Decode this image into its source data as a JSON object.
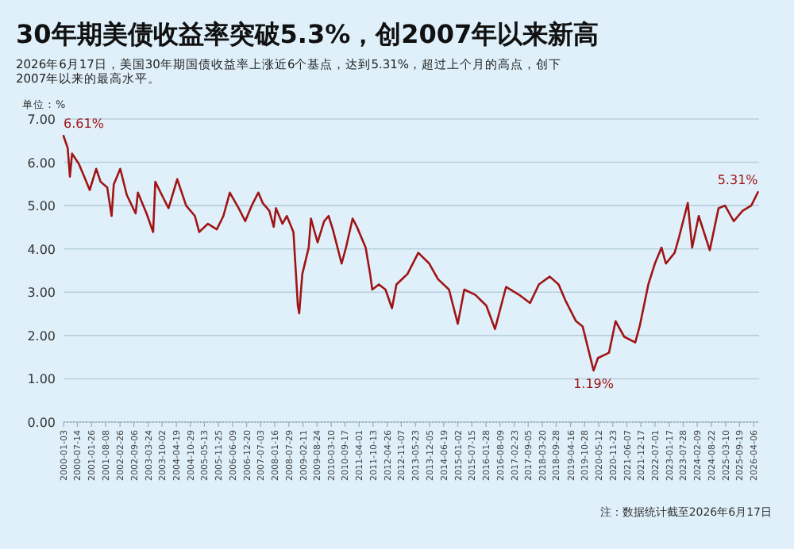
{
  "chart_data": {
    "type": "line",
    "title": "30年期美债收益率突破5.3%，创2007年以来新高",
    "subtitle": "2026年6月17日，美国30年期国债收益率上涨近6个基点，达到5.31%，超过上个月的高点，创下2007年以来的最高水平。",
    "ylabel": "单位：%",
    "xlim": [
      "2000-01-03",
      "2026-06-17"
    ],
    "xticks": [
      "2000-01-03",
      "2000-07-14",
      "2001-01-26",
      "2001-08-08",
      "2002-02-26",
      "2002-09-06",
      "2003-03-24",
      "2003-10-02",
      "2004-04-19",
      "2004-10-29",
      "2005-05-13",
      "2005-11-25",
      "2006-06-09",
      "2006-12-20",
      "2007-07-03",
      "2008-01-16",
      "2008-07-29",
      "2009-02-11",
      "2009-08-24",
      "2010-03-10",
      "2010-09-17",
      "2011-04-01",
      "2011-10-13",
      "2012-04-26",
      "2012-11-07",
      "2013-05-23",
      "2013-12-05",
      "2014-06-19",
      "2015-01-02",
      "2015-07-15",
      "2016-01-28",
      "2016-08-09",
      "2017-02-23",
      "2017-09-05",
      "2018-03-20",
      "2018-09-28",
      "2019-04-16",
      "2019-10-28",
      "2020-05-12",
      "2020-11-23",
      "2021-06-07",
      "2021-12-17",
      "2022-07-01",
      "2023-01-17",
      "2023-07-28",
      "2024-02-09",
      "2024-08-22",
      "2025-03-10",
      "2025-09-19",
      "2026-04-06"
    ],
    "ylim": [
      0,
      7
    ],
    "yticks": [
      {
        "value": 0,
        "label": "0.00"
      },
      {
        "value": 1,
        "label": "1.00"
      },
      {
        "value": 2,
        "label": "2.00"
      },
      {
        "value": 3,
        "label": "3.00"
      },
      {
        "value": 4,
        "label": "4.00"
      },
      {
        "value": 5,
        "label": "5.00"
      },
      {
        "value": 6,
        "label": "6.00"
      },
      {
        "value": 7,
        "label": "7.00"
      }
    ],
    "grid": "y",
    "line_style": "solid",
    "series": [
      {
        "color": "#a01414",
        "x": [
          "2000-01-03",
          "2000-03",
          "2000-04",
          "2000-05",
          "2000-08",
          "2000-10",
          "2001-01",
          "2001-04",
          "2001-06",
          "2001-09",
          "2001-11",
          "2001-12",
          "2002-03",
          "2002-06",
          "2002-10",
          "2002-11",
          "2003-03",
          "2003-06",
          "2003-07",
          "2003-10",
          "2004-01",
          "2004-05",
          "2004-09",
          "2005-01",
          "2005-03",
          "2005-07",
          "2005-11",
          "2006-02",
          "2006-05",
          "2006-09",
          "2006-12",
          "2007-03",
          "2007-06",
          "2007-08",
          "2007-11",
          "2008-01",
          "2008-02",
          "2008-05",
          "2008-07",
          "2008-10",
          "2008-12",
          "2008-12-20",
          "2009-02",
          "2009-05",
          "2009-06",
          "2009-09",
          "2009-12",
          "2010-02",
          "2010-04",
          "2010-08",
          "2010-10",
          "2011-01",
          "2011-03",
          "2011-07",
          "2011-09",
          "2011-10",
          "2012-01",
          "2012-04",
          "2012-07",
          "2012-09",
          "2013-02",
          "2013-07",
          "2013-12",
          "2014-04",
          "2014-09",
          "2015-01",
          "2015-04",
          "2015-09",
          "2016-02",
          "2016-06",
          "2016-11",
          "2017-05",
          "2017-10",
          "2018-02",
          "2018-07",
          "2018-11",
          "2019-02",
          "2019-07",
          "2019-10",
          "2020-03",
          "2020-05",
          "2020-10",
          "2021-01",
          "2021-05",
          "2021-10",
          "2021-12",
          "2022-04",
          "2022-07",
          "2022-10",
          "2022-12",
          "2023-04",
          "2023-06",
          "2023-10",
          "2023-12",
          "2024-03",
          "2024-08",
          "2024-12",
          "2025-03",
          "2025-07",
          "2025-11",
          "2026-03",
          "2026-06"
        ],
        "values": [
          6.61,
          6.33,
          5.67,
          6.2,
          5.97,
          5.73,
          5.36,
          5.85,
          5.55,
          5.42,
          4.76,
          5.49,
          5.85,
          5.24,
          4.82,
          5.3,
          4.82,
          4.39,
          5.55,
          5.24,
          4.94,
          5.61,
          5.0,
          4.76,
          4.39,
          4.58,
          4.45,
          4.76,
          5.3,
          4.94,
          4.64,
          5.0,
          5.3,
          5.06,
          4.88,
          4.51,
          4.94,
          4.58,
          4.76,
          4.39,
          2.69,
          2.51,
          3.42,
          4.03,
          4.7,
          4.15,
          4.64,
          4.76,
          4.45,
          3.66,
          4.03,
          4.7,
          4.51,
          4.03,
          3.42,
          3.06,
          3.18,
          3.06,
          2.63,
          3.18,
          3.42,
          3.91,
          3.66,
          3.3,
          3.06,
          2.27,
          3.06,
          2.94,
          2.69,
          2.15,
          3.12,
          2.94,
          2.75,
          3.18,
          3.36,
          3.18,
          2.82,
          2.33,
          2.21,
          1.19,
          1.48,
          1.6,
          2.33,
          1.97,
          1.84,
          2.21,
          3.18,
          3.66,
          4.03,
          3.66,
          3.91,
          4.27,
          5.06,
          4.03,
          4.76,
          3.97,
          4.94,
          5.0,
          4.64,
          4.88,
          5.0,
          5.31
        ]
      }
    ],
    "annotations": [
      {
        "text": "6.61%",
        "x": "2000-01-03",
        "y": 6.61
      },
      {
        "text": "1.19%",
        "x": "2020-03",
        "y": 1.19
      },
      {
        "text": "5.31%",
        "x": "2026-06",
        "y": 5.31
      },
      "注：数据统计截至2026年6月17日"
    ]
  }
}
